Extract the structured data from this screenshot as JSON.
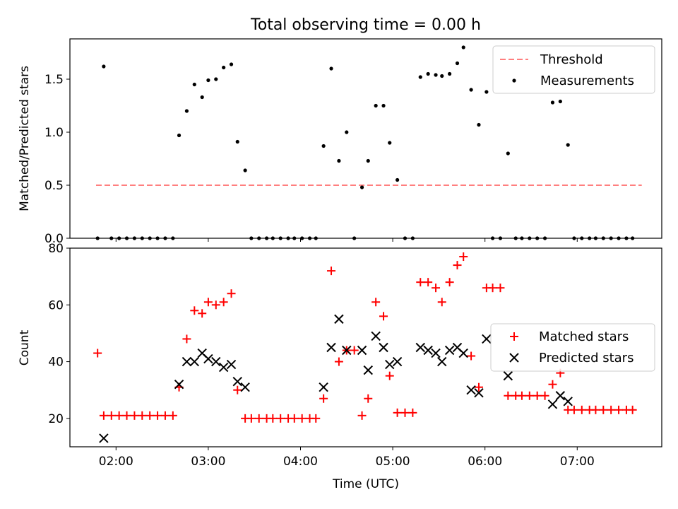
{
  "chart_data": [
    {
      "type": "scatter",
      "title": "Total observing time = 0.00 h",
      "xlabel": "",
      "ylabel": "Matched/Predicted stars",
      "xlim": [
        "01:30",
        "07:55"
      ],
      "ylim": [
        0,
        1.88
      ],
      "y_ticks": [
        "0.0",
        "0.5",
        "1.0",
        "1.5"
      ],
      "legend_position": "top-right",
      "legend": [
        "Threshold",
        "Measurements"
      ],
      "threshold": {
        "name": "Threshold",
        "value": 0.5,
        "x_start": "01:47",
        "x_end": "07:42",
        "color": "#ff7f7f"
      },
      "series": [
        {
          "name": "Measurements",
          "color": "#000000",
          "points": [
            [
              "01:48",
              0.0
            ],
            [
              "01:52",
              1.62
            ],
            [
              "01:57",
              0.0
            ],
            [
              "02:02",
              0.0
            ],
            [
              "02:07",
              0.0
            ],
            [
              "02:12",
              0.0
            ],
            [
              "02:17",
              0.0
            ],
            [
              "02:22",
              0.0
            ],
            [
              "02:27",
              0.0
            ],
            [
              "02:32",
              0.0
            ],
            [
              "02:37",
              0.0
            ],
            [
              "02:41",
              0.97
            ],
            [
              "02:46",
              1.2
            ],
            [
              "02:51",
              1.45
            ],
            [
              "02:56",
              1.33
            ],
            [
              "03:00",
              1.49
            ],
            [
              "03:05",
              1.5
            ],
            [
              "03:10",
              1.61
            ],
            [
              "03:15",
              1.64
            ],
            [
              "03:19",
              0.91
            ],
            [
              "03:24",
              0.64
            ],
            [
              "03:28",
              0.0
            ],
            [
              "03:33",
              0.0
            ],
            [
              "03:38",
              0.0
            ],
            [
              "03:42",
              0.0
            ],
            [
              "03:47",
              0.0
            ],
            [
              "03:52",
              0.0
            ],
            [
              "03:56",
              0.0
            ],
            [
              "04:01",
              0.0
            ],
            [
              "04:06",
              0.0
            ],
            [
              "04:10",
              0.0
            ],
            [
              "04:15",
              0.87
            ],
            [
              "04:20",
              1.6
            ],
            [
              "04:25",
              0.73
            ],
            [
              "04:30",
              1.0
            ],
            [
              "04:35",
              0.0
            ],
            [
              "04:40",
              0.48
            ],
            [
              "04:44",
              0.73
            ],
            [
              "04:49",
              1.25
            ],
            [
              "04:54",
              1.25
            ],
            [
              "04:58",
              0.9
            ],
            [
              "05:03",
              0.55
            ],
            [
              "05:08",
              0.0
            ],
            [
              "05:13",
              0.0
            ],
            [
              "05:18",
              1.52
            ],
            [
              "05:23",
              1.55
            ],
            [
              "05:28",
              1.54
            ],
            [
              "05:32",
              1.53
            ],
            [
              "05:37",
              1.55
            ],
            [
              "05:42",
              1.65
            ],
            [
              "05:46",
              1.8
            ],
            [
              "05:51",
              1.4
            ],
            [
              "05:56",
              1.07
            ],
            [
              "06:01",
              1.38
            ],
            [
              "06:05",
              0.0
            ],
            [
              "06:10",
              0.0
            ],
            [
              "06:15",
              0.8
            ],
            [
              "06:20",
              0.0
            ],
            [
              "06:24",
              0.0
            ],
            [
              "06:29",
              0.0
            ],
            [
              "06:34",
              0.0
            ],
            [
              "06:39",
              0.0
            ],
            [
              "06:44",
              1.28
            ],
            [
              "06:49",
              1.29
            ],
            [
              "06:54",
              0.88
            ],
            [
              "06:58",
              0.0
            ],
            [
              "07:03",
              0.0
            ],
            [
              "07:08",
              0.0
            ],
            [
              "07:12",
              0.0
            ],
            [
              "07:17",
              0.0
            ],
            [
              "07:22",
              0.0
            ],
            [
              "07:27",
              0.0
            ],
            [
              "07:32",
              0.0
            ],
            [
              "07:36",
              0.0
            ]
          ]
        }
      ]
    },
    {
      "type": "scatter",
      "title": "",
      "xlabel": "Time (UTC)",
      "ylabel": "Count",
      "xlim": [
        "01:30",
        "07:55"
      ],
      "ylim": [
        10,
        80
      ],
      "x_ticks": [
        "02:00",
        "03:00",
        "04:00",
        "05:00",
        "06:00",
        "07:00"
      ],
      "y_ticks": [
        "20",
        "40",
        "60",
        "80"
      ],
      "legend_position": "center-right",
      "legend": [
        "Matched stars",
        "Predicted stars"
      ],
      "series": [
        {
          "name": "Matched stars",
          "color": "#ff0000",
          "marker": "plus",
          "points": [
            [
              "01:48",
              43
            ],
            [
              "01:52",
              21
            ],
            [
              "01:57",
              21
            ],
            [
              "02:02",
              21
            ],
            [
              "02:07",
              21
            ],
            [
              "02:12",
              21
            ],
            [
              "02:17",
              21
            ],
            [
              "02:22",
              21
            ],
            [
              "02:27",
              21
            ],
            [
              "02:32",
              21
            ],
            [
              "02:37",
              21
            ],
            [
              "02:41",
              31
            ],
            [
              "02:46",
              48
            ],
            [
              "02:51",
              58
            ],
            [
              "02:56",
              57
            ],
            [
              "03:00",
              61
            ],
            [
              "03:05",
              60
            ],
            [
              "03:10",
              61
            ],
            [
              "03:15",
              64
            ],
            [
              "03:19",
              30
            ],
            [
              "03:24",
              20
            ],
            [
              "03:28",
              20
            ],
            [
              "03:33",
              20
            ],
            [
              "03:38",
              20
            ],
            [
              "03:42",
              20
            ],
            [
              "03:47",
              20
            ],
            [
              "03:52",
              20
            ],
            [
              "03:56",
              20
            ],
            [
              "04:01",
              20
            ],
            [
              "04:06",
              20
            ],
            [
              "04:10",
              20
            ],
            [
              "04:15",
              27
            ],
            [
              "04:20",
              72
            ],
            [
              "04:25",
              40
            ],
            [
              "04:30",
              44
            ],
            [
              "04:35",
              44
            ],
            [
              "04:40",
              21
            ],
            [
              "04:44",
              27
            ],
            [
              "04:49",
              61
            ],
            [
              "04:54",
              56
            ],
            [
              "04:58",
              35
            ],
            [
              "05:03",
              22
            ],
            [
              "05:08",
              22
            ],
            [
              "05:13",
              22
            ],
            [
              "05:18",
              68
            ],
            [
              "05:23",
              68
            ],
            [
              "05:28",
              66
            ],
            [
              "05:32",
              61
            ],
            [
              "05:37",
              68
            ],
            [
              "05:42",
              74
            ],
            [
              "05:46",
              77
            ],
            [
              "05:51",
              42
            ],
            [
              "05:56",
              31
            ],
            [
              "06:01",
              66
            ],
            [
              "06:05",
              66
            ],
            [
              "06:10",
              66
            ],
            [
              "06:15",
              28
            ],
            [
              "06:20",
              28
            ],
            [
              "06:24",
              28
            ],
            [
              "06:29",
              28
            ],
            [
              "06:34",
              28
            ],
            [
              "06:39",
              28
            ],
            [
              "06:44",
              32
            ],
            [
              "06:49",
              36
            ],
            [
              "06:54",
              23
            ],
            [
              "06:58",
              23
            ],
            [
              "07:03",
              23
            ],
            [
              "07:08",
              23
            ],
            [
              "07:12",
              23
            ],
            [
              "07:17",
              23
            ],
            [
              "07:22",
              23
            ],
            [
              "07:27",
              23
            ],
            [
              "07:32",
              23
            ],
            [
              "07:36",
              23
            ]
          ]
        },
        {
          "name": "Predicted stars",
          "color": "#000000",
          "marker": "x",
          "points": [
            [
              "01:52",
              13
            ],
            [
              "02:41",
              32
            ],
            [
              "02:46",
              40
            ],
            [
              "02:51",
              40
            ],
            [
              "02:56",
              43
            ],
            [
              "03:00",
              41
            ],
            [
              "03:05",
              40
            ],
            [
              "03:10",
              38
            ],
            [
              "03:15",
              39
            ],
            [
              "03:19",
              33
            ],
            [
              "03:24",
              31
            ],
            [
              "04:15",
              31
            ],
            [
              "04:20",
              45
            ],
            [
              "04:25",
              55
            ],
            [
              "04:30",
              44
            ],
            [
              "04:40",
              44
            ],
            [
              "04:44",
              37
            ],
            [
              "04:49",
              49
            ],
            [
              "04:54",
              45
            ],
            [
              "04:58",
              39
            ],
            [
              "05:03",
              40
            ],
            [
              "05:18",
              45
            ],
            [
              "05:23",
              44
            ],
            [
              "05:28",
              43
            ],
            [
              "05:32",
              40
            ],
            [
              "05:37",
              44
            ],
            [
              "05:42",
              45
            ],
            [
              "05:46",
              43
            ],
            [
              "05:51",
              30
            ],
            [
              "05:56",
              29
            ],
            [
              "06:01",
              48
            ],
            [
              "06:15",
              35
            ],
            [
              "06:44",
              25
            ],
            [
              "06:49",
              28
            ],
            [
              "06:54",
              26
            ]
          ]
        }
      ]
    }
  ]
}
